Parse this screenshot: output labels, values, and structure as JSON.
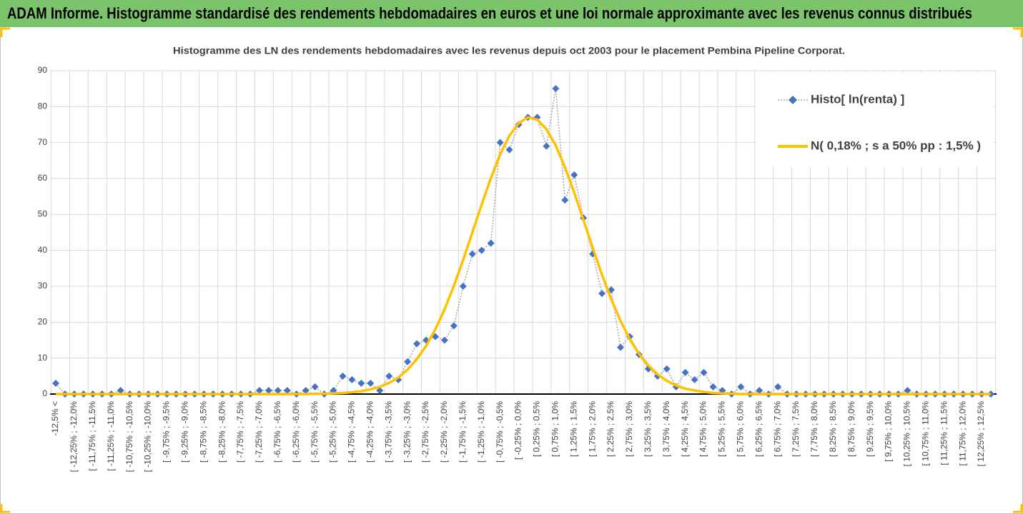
{
  "header": {
    "title": "ADAM Informe. Histogramme standardisé des rendements hebdomadaires en euros et une loi normale approximante avec les revenus connus distribués"
  },
  "chart_data": {
    "type": "line",
    "title": "Histogramme des LN des rendements hebdomadaires avec les revenus depuis oct 2003 pour le placement Pembina Pipeline Corporat.",
    "categories": [
      "-12,5% <",
      null,
      "[ -12,25% ; -12,0%",
      null,
      "[ -11,75% ; -11,5%",
      null,
      "[ -11,25% ; -11,0%",
      null,
      "[ -10,75% ; -10,5%",
      null,
      "[ -10,25% ; -10,0%",
      null,
      "[ -9,75% ; -9,5%",
      null,
      "[ -9,25% ; -9,0%",
      null,
      "[ -8,75% ; -8,5%",
      null,
      "[ -8,25% ; -8,0%",
      null,
      "[ -7,75% ; -7,5%",
      null,
      "[ -7,25% ; -7,0%",
      null,
      "[ -6,75% ; -6,5%",
      null,
      "[ -6,25% ; -6,0%",
      null,
      "[ -5,75% ; -5,5%",
      null,
      "[ -5,25% ; -5,0%",
      null,
      "[ -4,75% ; -4,5%",
      null,
      "[ -4,25% ; -4,0%",
      null,
      "[ -3,75% ; -3,5%",
      null,
      "[ -3,25% ; -3,0%",
      null,
      "[ -2,75% ; -2,5%",
      null,
      "[ -2,25% ; -2,0%",
      null,
      "[ -1,75% ; -1,5%",
      null,
      "[ -1,25% ; -1,0%",
      null,
      "[ -0,75% ; -0,5%",
      null,
      "[ -0,25% ; 0,0%",
      null,
      "[ 0,25% ; 0,5%",
      null,
      "[ 0,75% ; 1,0%",
      null,
      "[ 1,25% ; 1,5%",
      null,
      "[ 1,75% ; 2,0%",
      null,
      "[ 2,25% ; 2,5%",
      null,
      "[ 2,75% ; 3,0%",
      null,
      "[ 3,25% ; 3,5%",
      null,
      "[ 3,75% ; 4,0%",
      null,
      "[ 4,25% ; 4,5%",
      null,
      "[ 4,75% ; 5,0%",
      null,
      "[ 5,25% ; 5,5%",
      null,
      "[ 5,75% ; 6,0%",
      null,
      "[ 6,25% ; 6,5%",
      null,
      "[ 6,75% ; 7,0%",
      null,
      "[ 7,25% ; 7,5%",
      null,
      "[ 7,75% ; 8,0%",
      null,
      "[ 8,25% ; 8,5%",
      null,
      "[ 8,75% ; 9,0%",
      null,
      "[ 9,25% ; 9,5%",
      null,
      "[ 9,75% ; 10,0%",
      null,
      "[ 10,25% ; 10,5%",
      null,
      "[ 10,75% ; 11,0%",
      null,
      "[ 11,25% ; 11,5%",
      null,
      "[ 11,75% ; 12,0%",
      null,
      "[ 12,25% ; 12,5%",
      null
    ],
    "series": [
      {
        "name": "Histo[ ln(renta) ]",
        "color": "#4472c4",
        "values": [
          3,
          0,
          0,
          0,
          0,
          0,
          0,
          1,
          0,
          0,
          0,
          0,
          0,
          0,
          0,
          0,
          0,
          0,
          0,
          0,
          0,
          0,
          1,
          1,
          1,
          1,
          0,
          1,
          2,
          0,
          1,
          5,
          4,
          3,
          3,
          1,
          5,
          4,
          9,
          14,
          15,
          16,
          15,
          19,
          30,
          39,
          40,
          42,
          70,
          68,
          75,
          77,
          77,
          69,
          85,
          54,
          61,
          49,
          39,
          28,
          29,
          13,
          16,
          11,
          7,
          5,
          7,
          2,
          6,
          4,
          6,
          2,
          1,
          0,
          2,
          0,
          1,
          0,
          2,
          0,
          0,
          0,
          0,
          0,
          0,
          0,
          0,
          0,
          0,
          0,
          0,
          0,
          1,
          0,
          0,
          0,
          0,
          0,
          0,
          0,
          0,
          0
        ]
      },
      {
        "name": "N( 0,18% ; s a 50% pp : 1,5% )",
        "color": "#ffc000",
        "values": [
          0,
          0,
          0,
          0,
          0,
          0,
          0,
          0,
          0,
          0,
          0,
          0,
          0,
          0,
          0,
          0,
          0,
          0,
          0,
          0,
          0,
          0,
          0,
          0,
          0,
          0,
          0,
          0,
          0.1,
          0.1,
          0.2,
          0.3,
          0.5,
          0.8,
          1.3,
          2.0,
          3.1,
          4.6,
          6.8,
          9.7,
          13.4,
          18.0,
          23.6,
          30.1,
          37.3,
          45.0,
          52.7,
          60.1,
          66.7,
          71.9,
          75.4,
          77.0,
          76.4,
          73.7,
          69.2,
          63.1,
          56.1,
          48.4,
          40.7,
          33.2,
          26.4,
          20.4,
          15.3,
          11.2,
          8.0,
          5.5,
          3.7,
          2.4,
          1.5,
          1.0,
          0.6,
          0.3,
          0.2,
          0.1,
          0,
          0,
          0,
          0,
          0,
          0,
          0,
          0,
          0,
          0,
          0,
          0,
          0,
          0,
          0,
          0,
          0,
          0,
          0,
          0,
          0,
          0,
          0,
          0,
          0,
          0,
          0,
          0
        ]
      }
    ],
    "ylim": [
      0,
      90
    ],
    "yticks": [
      0,
      10,
      20,
      30,
      40,
      50,
      60,
      70,
      80,
      90
    ],
    "grid": true,
    "legend": "top-right"
  }
}
